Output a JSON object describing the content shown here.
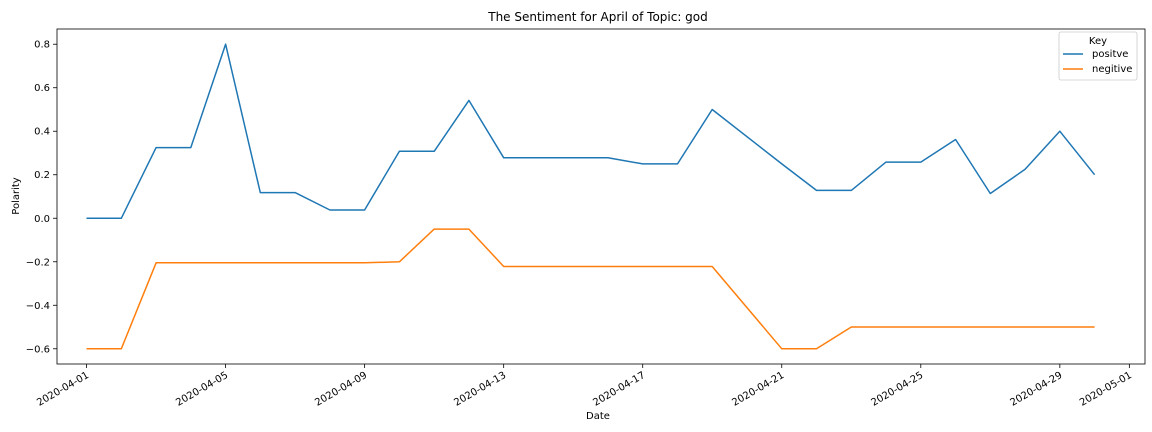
{
  "chart_data": {
    "type": "line",
    "title": "The Sentiment for April of Topic: god",
    "xlabel": "Date",
    "ylabel": "Polarity",
    "x_ticks": [
      "2020-04-01",
      "2020-04-05",
      "2020-04-09",
      "2020-04-13",
      "2020-04-17",
      "2020-04-21",
      "2020-04-25",
      "2020-04-29",
      "2020-05-01"
    ],
    "y_ticks": [
      "−0.6",
      "−0.4",
      "−0.2",
      "0.0",
      "0.2",
      "0.4",
      "0.6",
      "0.8"
    ],
    "xlim": [
      "2020-03-31",
      "2020-05-01"
    ],
    "ylim": [
      -0.67,
      0.87
    ],
    "legend": {
      "title": "Key",
      "placement": "top-right"
    },
    "grid": false,
    "series": [
      {
        "name": "positve",
        "color": "#1f77b4",
        "points": [
          [
            "2020-04-01",
            0.0
          ],
          [
            "2020-04-02",
            0.0
          ],
          [
            "2020-04-03",
            0.325
          ],
          [
            "2020-04-04",
            0.325
          ],
          [
            "2020-04-05",
            0.8
          ],
          [
            "2020-04-06",
            0.118
          ],
          [
            "2020-04-07",
            0.118
          ],
          [
            "2020-04-08",
            0.038
          ],
          [
            "2020-04-09",
            0.038
          ],
          [
            "2020-04-10",
            0.308
          ],
          [
            "2020-04-11",
            0.308
          ],
          [
            "2020-04-12",
            0.542
          ],
          [
            "2020-04-13",
            0.278
          ],
          [
            "2020-04-16",
            0.278
          ],
          [
            "2020-04-17",
            0.25
          ],
          [
            "2020-04-18",
            0.25
          ],
          [
            "2020-04-19",
            0.5
          ],
          [
            "2020-04-21",
            0.25
          ],
          [
            "2020-04-22",
            0.128
          ],
          [
            "2020-04-23",
            0.128
          ],
          [
            "2020-04-24",
            0.258
          ],
          [
            "2020-04-25",
            0.258
          ],
          [
            "2020-04-26",
            0.362
          ],
          [
            "2020-04-27",
            0.114
          ],
          [
            "2020-04-28",
            0.225
          ],
          [
            "2020-04-29",
            0.4
          ],
          [
            "2020-04-30",
            0.2
          ]
        ]
      },
      {
        "name": "negitive",
        "color": "#ff7f0e",
        "points": [
          [
            "2020-04-01",
            -0.6
          ],
          [
            "2020-04-02",
            -0.6
          ],
          [
            "2020-04-03",
            -0.205
          ],
          [
            "2020-04-09",
            -0.205
          ],
          [
            "2020-04-10",
            -0.2
          ],
          [
            "2020-04-11",
            -0.05
          ],
          [
            "2020-04-12",
            -0.05
          ],
          [
            "2020-04-13",
            -0.222
          ],
          [
            "2020-04-19",
            -0.222
          ],
          [
            "2020-04-21",
            -0.6
          ],
          [
            "2020-04-22",
            -0.6
          ],
          [
            "2020-04-23",
            -0.5
          ],
          [
            "2020-04-30",
            -0.5
          ]
        ]
      }
    ]
  }
}
